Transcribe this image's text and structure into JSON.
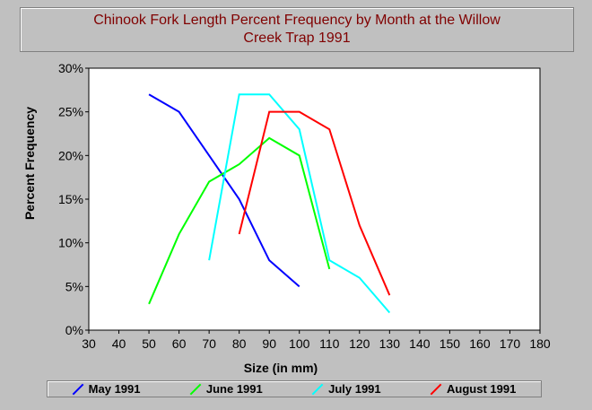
{
  "chart_data": {
    "type": "line",
    "title_lines": [
      "Chinook Fork Length Percent Frequency by Month at the Willow",
      "Creek Trap 1991"
    ],
    "xlabel": "Size (in mm)",
    "ylabel": "Percent Frequency",
    "xlim": [
      30,
      180
    ],
    "ylim": [
      0,
      30
    ],
    "x_ticks": [
      30,
      40,
      50,
      60,
      70,
      80,
      90,
      100,
      110,
      120,
      130,
      140,
      150,
      160,
      170,
      180
    ],
    "y_ticks": [
      0,
      5,
      10,
      15,
      20,
      25,
      30
    ],
    "y_tick_labels": [
      "0%",
      "5%",
      "10%",
      "15%",
      "20%",
      "25%",
      "30%"
    ],
    "grid": false,
    "legend_position": "bottom",
    "series": [
      {
        "name": "May 1991",
        "color": "#0000ff",
        "points": [
          [
            50,
            27
          ],
          [
            60,
            25
          ],
          [
            70,
            20
          ],
          [
            80,
            15
          ],
          [
            90,
            8
          ],
          [
            100,
            5
          ]
        ]
      },
      {
        "name": "June 1991",
        "color": "#00ff00",
        "points": [
          [
            50,
            3
          ],
          [
            60,
            11
          ],
          [
            70,
            17
          ],
          [
            80,
            19
          ],
          [
            90,
            22
          ],
          [
            100,
            20
          ],
          [
            110,
            7
          ]
        ]
      },
      {
        "name": "July 1991",
        "color": "#00ffff",
        "points": [
          [
            70,
            8
          ],
          [
            80,
            27
          ],
          [
            90,
            27
          ],
          [
            100,
            23
          ],
          [
            110,
            8
          ],
          [
            120,
            6
          ],
          [
            130,
            2
          ]
        ]
      },
      {
        "name": "August 1991",
        "color": "#ff0000",
        "points": [
          [
            80,
            11
          ],
          [
            90,
            25
          ],
          [
            100,
            25
          ],
          [
            110,
            23
          ],
          [
            120,
            12
          ],
          [
            130,
            4
          ]
        ]
      }
    ]
  }
}
